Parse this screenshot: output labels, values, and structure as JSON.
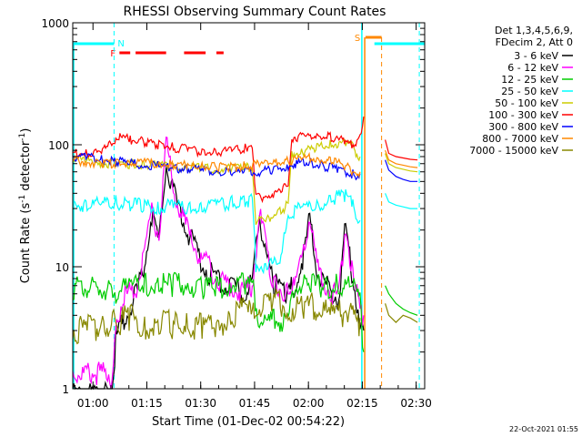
{
  "chart_data": {
    "type": "line",
    "title": "RHESSI Observing Summary Count Rates",
    "xlabel": "Start Time (01-Dec-02 00:54:22)",
    "ylabel_prefix": "Count Rate (s",
    "ylabel_sup1": "-1",
    "ylabel_mid": " detector",
    "ylabel_sup2": "-1",
    "ylabel_suffix": ")",
    "x_unit": "minutes after 00:54:22",
    "xlim": [
      0,
      98
    ],
    "ylim": [
      1,
      1000
    ],
    "yscale": "log",
    "x_ticks": [
      {
        "value": 5.63,
        "label": "01:00"
      },
      {
        "value": 20.63,
        "label": "01:15"
      },
      {
        "value": 35.63,
        "label": "01:30"
      },
      {
        "value": 50.63,
        "label": "01:45"
      },
      {
        "value": 65.63,
        "label": "02:00"
      },
      {
        "value": 80.63,
        "label": "02:15"
      },
      {
        "value": 95.63,
        "label": "02:30"
      }
    ],
    "y_ticks": [
      {
        "value": 1,
        "label": "1"
      },
      {
        "value": 10,
        "label": "10"
      },
      {
        "value": 100,
        "label": "100"
      },
      {
        "value": 1000,
        "label": "1000"
      }
    ],
    "legend_header": [
      "Det 1,3,4,5,6,9,",
      "FDecim 2, Att 0"
    ],
    "series": [
      {
        "name": "3 - 6 keV",
        "color": "#000000",
        "x": [
          0,
          10,
          11,
          12,
          14,
          16,
          18,
          20,
          22,
          24,
          26,
          28,
          30,
          32,
          34,
          36,
          38,
          40,
          42,
          44,
          46,
          48,
          50,
          52,
          56,
          60,
          62,
          64,
          66,
          68,
          70,
          72,
          74,
          76,
          78,
          80,
          81
        ],
        "y": [
          1,
          1,
          1,
          3,
          4,
          5,
          7,
          12,
          30,
          18,
          80,
          45,
          30,
          22,
          16,
          12,
          10,
          9,
          8,
          8,
          7,
          7,
          8,
          28,
          8,
          7,
          8,
          12,
          28,
          10,
          8,
          7,
          6,
          25,
          9,
          4,
          3
        ]
      },
      {
        "name": "6 - 12 keV",
        "color": "#ff00ff",
        "x": [
          0,
          10,
          11,
          12,
          14,
          16,
          18,
          20,
          22,
          24,
          26,
          28,
          30,
          32,
          34,
          36,
          38,
          40,
          42,
          44,
          46,
          48,
          50,
          52,
          56,
          60,
          62,
          64,
          66,
          68,
          70,
          72,
          74,
          76,
          78,
          80,
          81
        ],
        "y": [
          1.5,
          1.5,
          1.2,
          4,
          6,
          7,
          8,
          14,
          32,
          20,
          120,
          50,
          32,
          22,
          16,
          13,
          11,
          9,
          8,
          8,
          7,
          7,
          8,
          30,
          8,
          7,
          8,
          13,
          30,
          11,
          8,
          7,
          6,
          26,
          9,
          5,
          4
        ]
      },
      {
        "name": "12 - 25 keV",
        "color": "#00cc00",
        "x": [
          0,
          10,
          12,
          16,
          20,
          24,
          28,
          32,
          36,
          40,
          44,
          48,
          50,
          52,
          54,
          56,
          58,
          60,
          62,
          66,
          70,
          74,
          78,
          80,
          81
        ],
        "y": [
          7.5,
          7.5,
          7,
          7.5,
          8,
          8,
          8,
          8,
          7.5,
          7.5,
          8,
          8,
          8,
          4,
          4,
          4,
          4,
          4.2,
          7.5,
          8,
          7.5,
          8,
          7.5,
          6,
          2
        ]
      },
      {
        "name": "25 - 50 keV",
        "color": "#00ffff",
        "x": [
          0,
          4,
          8,
          12,
          16,
          20,
          24,
          28,
          32,
          36,
          40,
          44,
          48,
          50,
          51,
          54,
          58,
          60,
          64,
          68,
          72,
          76,
          78,
          80
        ],
        "y": [
          35,
          34,
          35,
          36,
          35,
          34,
          33,
          34,
          32,
          33,
          34,
          36,
          38,
          37,
          11,
          11,
          12,
          30,
          32,
          34,
          38,
          42,
          35,
          24
        ]
      },
      {
        "name": "50 - 100 keV",
        "color": "#cccc00",
        "x": [
          0,
          4,
          8,
          12,
          16,
          20,
          24,
          28,
          32,
          36,
          40,
          44,
          48,
          50,
          51,
          54,
          58,
          60,
          61,
          64,
          68,
          72,
          76,
          78,
          80
        ],
        "y": [
          80,
          78,
          75,
          72,
          73,
          72,
          70,
          70,
          68,
          67,
          66,
          67,
          68,
          70,
          24,
          26,
          30,
          34,
          88,
          92,
          98,
          105,
          110,
          100,
          80
        ]
      },
      {
        "name": "100 - 300 keV",
        "color": "#ff0000",
        "x": [
          0,
          4,
          8,
          10,
          12,
          14,
          16,
          20,
          24,
          28,
          32,
          36,
          40,
          44,
          48,
          50,
          51,
          54,
          58,
          60,
          61,
          64,
          68,
          72,
          76,
          78,
          80,
          81
        ],
        "y": [
          90,
          88,
          92,
          100,
          120,
          118,
          115,
          110,
          105,
          100,
          95,
          92,
          90,
          92,
          98,
          105,
          38,
          40,
          44,
          48,
          120,
          122,
          124,
          120,
          110,
          100,
          130,
          170
        ]
      },
      {
        "name": "300 - 800 keV",
        "color": "#0000ff",
        "x": [
          0,
          4,
          8,
          12,
          16,
          20,
          24,
          28,
          32,
          36,
          40,
          44,
          48,
          50,
          52,
          56,
          60,
          62,
          66,
          70,
          74,
          78,
          80
        ],
        "y": [
          85,
          82,
          80,
          76,
          74,
          72,
          70,
          68,
          66,
          64,
          63,
          62,
          63,
          64,
          62,
          66,
          70,
          72,
          75,
          70,
          66,
          60,
          58
        ]
      },
      {
        "name": "800 - 7000 keV",
        "color": "#ff8800",
        "x": [
          0,
          4,
          8,
          12,
          16,
          20,
          24,
          28,
          32,
          36,
          40,
          44,
          48,
          52,
          56,
          60,
          64,
          68,
          72,
          76,
          78,
          80
        ],
        "y": [
          78,
          76,
          74,
          74,
          75,
          74,
          73,
          72,
          70,
          70,
          69,
          68,
          70,
          72,
          75,
          78,
          80,
          82,
          76,
          70,
          64,
          60
        ]
      },
      {
        "name": "7000 - 15000 keV",
        "color": "#888800",
        "x": [
          0,
          4,
          8,
          12,
          16,
          20,
          24,
          28,
          32,
          36,
          40,
          44,
          48,
          50,
          52,
          56,
          60,
          64,
          66,
          68,
          72,
          74,
          76,
          78,
          80
        ],
        "y": [
          3.5,
          3.6,
          3.8,
          4,
          4.5,
          3.5,
          4,
          3.8,
          4,
          3.6,
          3.8,
          4.5,
          5,
          4.5,
          5.5,
          6,
          5.5,
          5,
          5.5,
          5,
          4.5,
          4.6,
          5,
          4.5,
          3.8
        ]
      }
    ],
    "after_gap": {
      "x": [
        87,
        88,
        90,
        92,
        94,
        96
      ],
      "values": {
        "100 - 300 keV": [
          110,
          85,
          80,
          78,
          76,
          75
        ],
        "800 - 7000 keV": [
          90,
          75,
          70,
          68,
          66,
          65
        ],
        "50 - 100 keV": [
          85,
          70,
          65,
          63,
          61,
          60
        ],
        "300 - 800 keV": [
          75,
          62,
          55,
          52,
          50,
          50
        ],
        "25 - 50 keV": [
          40,
          34,
          32,
          31,
          30,
          30
        ],
        "12 - 25 keV": [
          7,
          6,
          5,
          4.5,
          4.2,
          4
        ],
        "7000 - 15000 keV": [
          5,
          4,
          3.5,
          4,
          3.8,
          3.5
        ]
      }
    },
    "annotations": {
      "night_label": "N",
      "night_x": 11.5,
      "night_end": 98,
      "night_segments": [
        [
          0,
          11.5
        ],
        [
          84,
          98
        ]
      ],
      "flare_label": "F",
      "flare_segments": [
        [
          13,
          16
        ],
        [
          17.5,
          26
        ],
        [
          31,
          37
        ],
        [
          40,
          42
        ]
      ],
      "saa_label": "S",
      "saa_segments": [
        [
          80.5,
          86
        ]
      ],
      "dashed_lines_cyan": [
        11.5,
        96.5
      ],
      "dashed_line_orange": 86,
      "vertical_solid_cyan": [
        80.5
      ],
      "vertical_solid_orange": [
        80.8
      ]
    },
    "footer_stamp": "22-Oct-2021 01:55"
  }
}
